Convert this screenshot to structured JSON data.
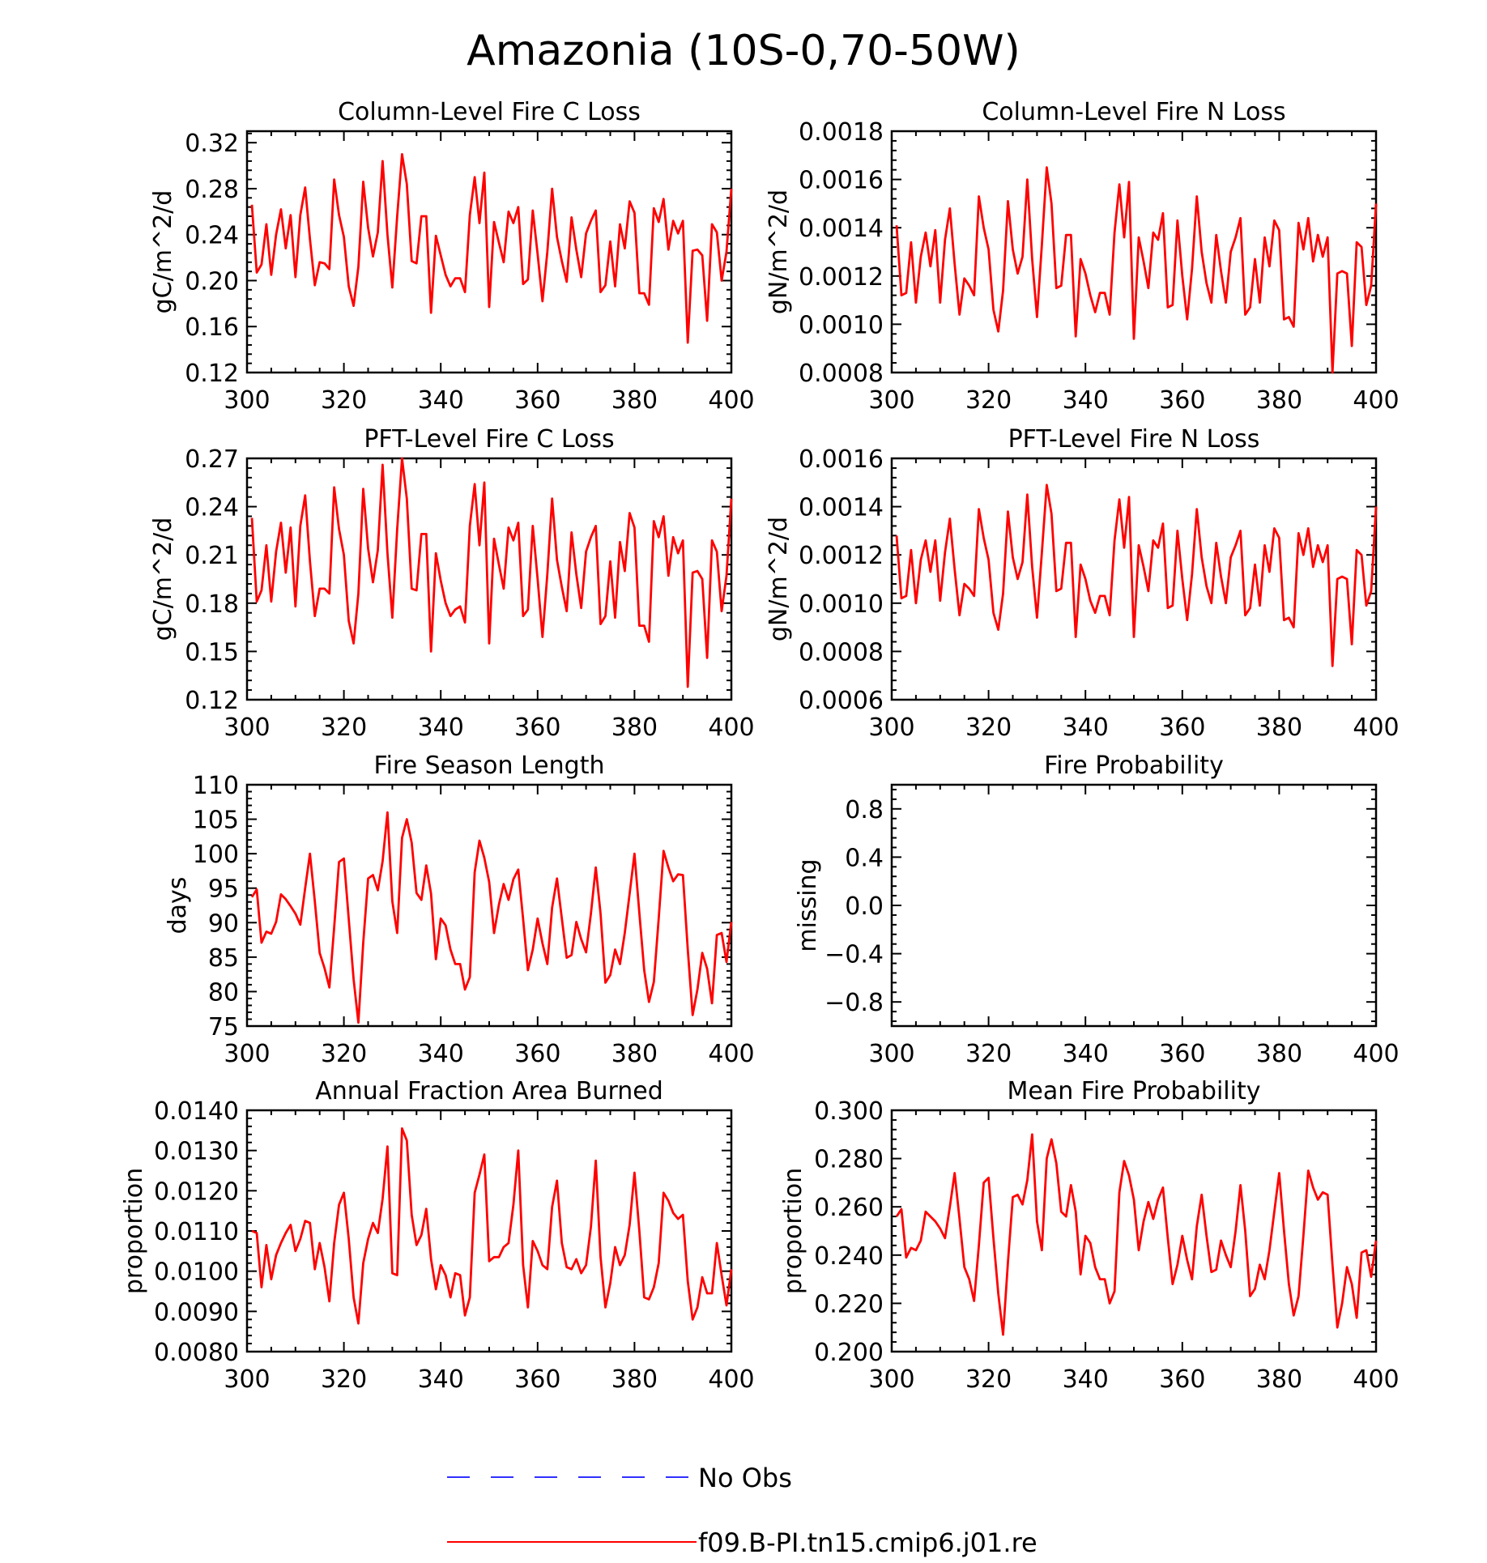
{
  "title": "Amazonia (10S-0,70-50W)",
  "legend": [
    {
      "label": "No Obs",
      "color": "#3030ff",
      "dash": "dashed"
    },
    {
      "label": "f09.B-PI.tn15.cmip6.j01.re",
      "color": "#ff0000",
      "dash": "solid"
    }
  ],
  "chart_data": [
    {
      "type": "line",
      "title": "Column-Level Fire C Loss",
      "ylabel": "gC/m^2/d",
      "xlim": [
        300,
        400
      ],
      "ylim": [
        0.12,
        0.33
      ],
      "xticks": [
        "300",
        "320",
        "340",
        "360",
        "380",
        "400"
      ],
      "yticks": [
        "0.12",
        "0.16",
        "0.20",
        "0.24",
        "0.28",
        "0.32"
      ],
      "x_start": 301,
      "series": [
        {
          "color": "#ff0000",
          "values": [
            0.266,
            0.207,
            0.214,
            0.249,
            0.205,
            0.24,
            0.262,
            0.228,
            0.257,
            0.203,
            0.257,
            0.281,
            0.236,
            0.196,
            0.216,
            0.215,
            0.21,
            0.288,
            0.257,
            0.238,
            0.195,
            0.178,
            0.212,
            0.286,
            0.246,
            0.221,
            0.242,
            0.304,
            0.24,
            0.194,
            0.256,
            0.31,
            0.284,
            0.217,
            0.215,
            0.256,
            0.256,
            0.172,
            0.239,
            0.222,
            0.205,
            0.195,
            0.202,
            0.202,
            0.19,
            0.257,
            0.29,
            0.25,
            0.294,
            0.177,
            0.251,
            0.233,
            0.216,
            0.26,
            0.25,
            0.264,
            0.197,
            0.201,
            0.261,
            0.223,
            0.182,
            0.225,
            0.28,
            0.238,
            0.217,
            0.199,
            0.255,
            0.227,
            0.203,
            0.241,
            0.252,
            0.261,
            0.19,
            0.196,
            0.234,
            0.195,
            0.249,
            0.228,
            0.269,
            0.259,
            0.189,
            0.189,
            0.179,
            0.263,
            0.251,
            0.271,
            0.227,
            0.252,
            0.241,
            0.252,
            0.146,
            0.226,
            0.227,
            0.222,
            0.165,
            0.249,
            0.242,
            0.2,
            0.225,
            0.28
          ]
        }
      ]
    },
    {
      "type": "line",
      "title": "Column-Level Fire N Loss",
      "ylabel": "gN/m^2/d",
      "xlim": [
        300,
        400
      ],
      "ylim": [
        0.0008,
        0.0018
      ],
      "xticks": [
        "300",
        "320",
        "340",
        "360",
        "380",
        "400"
      ],
      "yticks": [
        "0.0008",
        "0.0010",
        "0.0012",
        "0.0014",
        "0.0016",
        "0.0018"
      ],
      "x_start": 301,
      "series": [
        {
          "color": "#ff0000",
          "values": [
            0.00141,
            0.00112,
            0.00113,
            0.00134,
            0.00109,
            0.00128,
            0.00138,
            0.00124,
            0.00139,
            0.00109,
            0.00135,
            0.00148,
            0.00125,
            0.00104,
            0.00119,
            0.00116,
            0.00112,
            0.00153,
            0.0014,
            0.00131,
            0.00106,
            0.00097,
            0.00114,
            0.00151,
            0.00131,
            0.00121,
            0.00128,
            0.0016,
            0.00127,
            0.00103,
            0.00133,
            0.00165,
            0.0015,
            0.00115,
            0.00116,
            0.00137,
            0.00137,
            0.00095,
            0.00127,
            0.00121,
            0.00112,
            0.00105,
            0.00113,
            0.00113,
            0.00104,
            0.00138,
            0.00158,
            0.00136,
            0.00159,
            0.00094,
            0.00136,
            0.00126,
            0.00115,
            0.00138,
            0.00135,
            0.00146,
            0.00107,
            0.00108,
            0.00143,
            0.0012,
            0.00102,
            0.00123,
            0.00153,
            0.0013,
            0.00117,
            0.00109,
            0.00137,
            0.00122,
            0.00109,
            0.0013,
            0.00136,
            0.00144,
            0.00104,
            0.00107,
            0.00127,
            0.00109,
            0.00136,
            0.00124,
            0.00143,
            0.00139,
            0.00102,
            0.00103,
            0.00099,
            0.00142,
            0.00131,
            0.00144,
            0.00126,
            0.00137,
            0.00128,
            0.00136,
            0.0008,
            0.00121,
            0.00122,
            0.00121,
            0.00091,
            0.00134,
            0.00132,
            0.00108,
            0.00116,
            0.0015
          ]
        }
      ]
    },
    {
      "type": "line",
      "title": "PFT-Level Fire C Loss",
      "ylabel": "gC/m^2/d",
      "xlim": [
        300,
        400
      ],
      "ylim": [
        0.12,
        0.27
      ],
      "xticks": [
        "300",
        "320",
        "340",
        "360",
        "380",
        "400"
      ],
      "yticks": [
        "0.12",
        "0.15",
        "0.18",
        "0.21",
        "0.24",
        "0.27"
      ],
      "x_start": 301,
      "series": [
        {
          "color": "#ff0000",
          "values": [
            0.233,
            0.181,
            0.188,
            0.216,
            0.181,
            0.212,
            0.23,
            0.199,
            0.227,
            0.178,
            0.228,
            0.247,
            0.206,
            0.172,
            0.189,
            0.189,
            0.186,
            0.252,
            0.226,
            0.21,
            0.169,
            0.155,
            0.186,
            0.251,
            0.214,
            0.193,
            0.213,
            0.266,
            0.211,
            0.171,
            0.226,
            0.27,
            0.245,
            0.189,
            0.188,
            0.223,
            0.223,
            0.15,
            0.211,
            0.194,
            0.18,
            0.172,
            0.176,
            0.178,
            0.168,
            0.228,
            0.254,
            0.216,
            0.255,
            0.155,
            0.22,
            0.204,
            0.189,
            0.227,
            0.219,
            0.23,
            0.172,
            0.176,
            0.228,
            0.195,
            0.159,
            0.198,
            0.245,
            0.207,
            0.19,
            0.175,
            0.224,
            0.198,
            0.177,
            0.212,
            0.221,
            0.228,
            0.167,
            0.172,
            0.206,
            0.171,
            0.218,
            0.2,
            0.236,
            0.227,
            0.166,
            0.166,
            0.156,
            0.231,
            0.221,
            0.234,
            0.197,
            0.221,
            0.211,
            0.219,
            0.128,
            0.199,
            0.2,
            0.195,
            0.146,
            0.219,
            0.212,
            0.175,
            0.197,
            0.245
          ]
        }
      ]
    },
    {
      "type": "line",
      "title": "PFT-Level Fire N Loss",
      "ylabel": "gN/m^2/d",
      "xlim": [
        300,
        400
      ],
      "ylim": [
        0.0006,
        0.0016
      ],
      "xticks": [
        "300",
        "320",
        "340",
        "360",
        "380",
        "400"
      ],
      "yticks": [
        "0.0006",
        "0.0008",
        "0.0010",
        "0.0012",
        "0.0014",
        "0.0016"
      ],
      "x_start": 301,
      "series": [
        {
          "color": "#ff0000",
          "values": [
            0.00128,
            0.00102,
            0.00103,
            0.00122,
            0.001,
            0.00118,
            0.00126,
            0.00113,
            0.00126,
            0.00101,
            0.00121,
            0.00135,
            0.00114,
            0.00095,
            0.00108,
            0.00106,
            0.00103,
            0.00139,
            0.00127,
            0.00118,
            0.00096,
            0.00089,
            0.00104,
            0.00138,
            0.00119,
            0.0011,
            0.00117,
            0.00145,
            0.00115,
            0.00094,
            0.00121,
            0.00149,
            0.00137,
            0.00105,
            0.00106,
            0.00125,
            0.00125,
            0.00086,
            0.00116,
            0.0011,
            0.00101,
            0.00096,
            0.00103,
            0.00103,
            0.00095,
            0.00126,
            0.00143,
            0.00123,
            0.00144,
            0.00086,
            0.00124,
            0.00115,
            0.00105,
            0.00126,
            0.00123,
            0.00133,
            0.00098,
            0.00099,
            0.0013,
            0.0011,
            0.00093,
            0.00112,
            0.00139,
            0.00119,
            0.00107,
            0.001,
            0.00125,
            0.00111,
            0.001,
            0.00119,
            0.00124,
            0.0013,
            0.00095,
            0.00098,
            0.00116,
            0.00099,
            0.00124,
            0.00113,
            0.00131,
            0.00127,
            0.00093,
            0.00094,
            0.0009,
            0.00129,
            0.0012,
            0.00131,
            0.00115,
            0.00124,
            0.00117,
            0.00124,
            0.00074,
            0.0011,
            0.00111,
            0.0011,
            0.00083,
            0.00122,
            0.0012,
            0.00099,
            0.00105,
            0.0014
          ]
        }
      ]
    },
    {
      "type": "line",
      "title": "Fire Season Length",
      "ylabel": "days",
      "xlim": [
        300,
        400
      ],
      "ylim": [
        75,
        110
      ],
      "xticks": [
        "300",
        "320",
        "340",
        "360",
        "380",
        "400"
      ],
      "yticks": [
        "75",
        "80",
        "85",
        "90",
        "95",
        "100",
        "105",
        "110"
      ],
      "x_start": 301,
      "series": [
        {
          "color": "#ff0000",
          "values": [
            93.7,
            94.8,
            87.1,
            88.7,
            88.4,
            90.1,
            94.1,
            93.4,
            92.4,
            91.3,
            89.7,
            95.0,
            100.0,
            93.1,
            85.6,
            83.4,
            80.6,
            89.3,
            98.8,
            99.3,
            90.5,
            81.8,
            75.5,
            87.1,
            96.4,
            96.9,
            94.7,
            98.9,
            106.0,
            93.1,
            88.5,
            102.3,
            105.0,
            101.6,
            94.3,
            93.3,
            98.3,
            94.2,
            84.7,
            90.6,
            89.6,
            86.1,
            84.0,
            84.0,
            80.3,
            82.1,
            97.3,
            101.9,
            99.4,
            95.9,
            88.5,
            92.6,
            95.6,
            93.3,
            96.3,
            97.7,
            90.5,
            83.1,
            86.1,
            90.6,
            87.0,
            84.0,
            92.2,
            96.4,
            90.6,
            84.9,
            85.3,
            90.1,
            87.6,
            85.7,
            91.3,
            98.0,
            91.3,
            81.3,
            82.4,
            86.1,
            84.0,
            88.5,
            94.2,
            100.0,
            91.4,
            83.1,
            78.5,
            81.4,
            90.6,
            100.4,
            98.0,
            96.0,
            97.0,
            96.9,
            86.1,
            76.6,
            80.3,
            85.6,
            83.3,
            78.3,
            88.2,
            88.5,
            84.3,
            90.1
          ]
        }
      ]
    },
    {
      "type": "line",
      "title": "Fire Probability",
      "ylabel": "missing",
      "xlim": [
        300,
        400
      ],
      "ylim": [
        -1.0,
        1.0
      ],
      "xticks": [
        "300",
        "320",
        "340",
        "360",
        "380",
        "400"
      ],
      "yticks": [
        "−0.8",
        "−0.4",
        "0.0",
        "0.4",
        "0.8"
      ],
      "ytick_values": [
        -0.8,
        -0.4,
        0.0,
        0.4,
        0.8
      ],
      "x_start": 301,
      "series": []
    },
    {
      "type": "line",
      "title": "Annual Fraction Area Burned",
      "ylabel": "proportion",
      "xlim": [
        300,
        400
      ],
      "ylim": [
        0.008,
        0.014
      ],
      "xticks": [
        "300",
        "320",
        "340",
        "360",
        "380",
        "400"
      ],
      "yticks": [
        "0.0080",
        "0.0090",
        "0.0100",
        "0.0110",
        "0.0120",
        "0.0130",
        "0.0140"
      ],
      "x_start": 301,
      "series": [
        {
          "color": "#ff0000",
          "values": [
            0.011,
            0.01095,
            0.0096,
            0.01065,
            0.0098,
            0.0104,
            0.0107,
            0.01095,
            0.01115,
            0.0105,
            0.0108,
            0.01125,
            0.0112,
            0.01005,
            0.0107,
            0.0101,
            0.00925,
            0.0107,
            0.01165,
            0.01195,
            0.0108,
            0.00935,
            0.0087,
            0.0102,
            0.0108,
            0.0112,
            0.01095,
            0.0118,
            0.0131,
            0.00995,
            0.0099,
            0.01355,
            0.01325,
            0.0114,
            0.01065,
            0.0109,
            0.01155,
            0.0103,
            0.00955,
            0.01015,
            0.0099,
            0.00935,
            0.00995,
            0.0099,
            0.0089,
            0.00935,
            0.01195,
            0.0124,
            0.0129,
            0.01025,
            0.01035,
            0.01035,
            0.0106,
            0.0107,
            0.01165,
            0.013,
            0.01015,
            0.0091,
            0.01075,
            0.0105,
            0.01015,
            0.01005,
            0.0116,
            0.01225,
            0.0107,
            0.0101,
            0.01005,
            0.0103,
            0.00995,
            0.01015,
            0.0111,
            0.01275,
            0.01035,
            0.0091,
            0.0097,
            0.0106,
            0.01015,
            0.0104,
            0.01115,
            0.01245,
            0.011,
            0.00935,
            0.0093,
            0.0096,
            0.0102,
            0.01195,
            0.01175,
            0.01145,
            0.0113,
            0.0114,
            0.00975,
            0.0088,
            0.0091,
            0.00985,
            0.00945,
            0.00945,
            0.0107,
            0.0099,
            0.00915,
            0.01005
          ]
        }
      ]
    },
    {
      "type": "line",
      "title": "Mean Fire Probability",
      "ylabel": "proportion",
      "xlim": [
        300,
        400
      ],
      "ylim": [
        0.2,
        0.3
      ],
      "xticks": [
        "300",
        "320",
        "340",
        "360",
        "380",
        "400"
      ],
      "yticks": [
        "0.200",
        "0.220",
        "0.240",
        "0.260",
        "0.280",
        "0.300"
      ],
      "x_start": 301,
      "series": [
        {
          "color": "#ff0000",
          "values": [
            0.256,
            0.259,
            0.239,
            0.243,
            0.242,
            0.246,
            0.258,
            0.256,
            0.254,
            0.251,
            0.247,
            0.26,
            0.274,
            0.255,
            0.235,
            0.23,
            0.221,
            0.244,
            0.27,
            0.272,
            0.247,
            0.224,
            0.207,
            0.237,
            0.264,
            0.265,
            0.261,
            0.271,
            0.29,
            0.254,
            0.242,
            0.28,
            0.288,
            0.278,
            0.258,
            0.256,
            0.269,
            0.258,
            0.232,
            0.248,
            0.245,
            0.235,
            0.23,
            0.23,
            0.22,
            0.225,
            0.266,
            0.279,
            0.273,
            0.263,
            0.242,
            0.254,
            0.262,
            0.255,
            0.263,
            0.268,
            0.247,
            0.228,
            0.236,
            0.248,
            0.238,
            0.23,
            0.252,
            0.265,
            0.248,
            0.233,
            0.234,
            0.246,
            0.24,
            0.235,
            0.25,
            0.269,
            0.25,
            0.223,
            0.226,
            0.236,
            0.23,
            0.242,
            0.258,
            0.274,
            0.25,
            0.228,
            0.215,
            0.223,
            0.248,
            0.275,
            0.268,
            0.263,
            0.266,
            0.265,
            0.236,
            0.21,
            0.22,
            0.235,
            0.228,
            0.214,
            0.241,
            0.242,
            0.231,
            0.246
          ]
        }
      ]
    }
  ]
}
